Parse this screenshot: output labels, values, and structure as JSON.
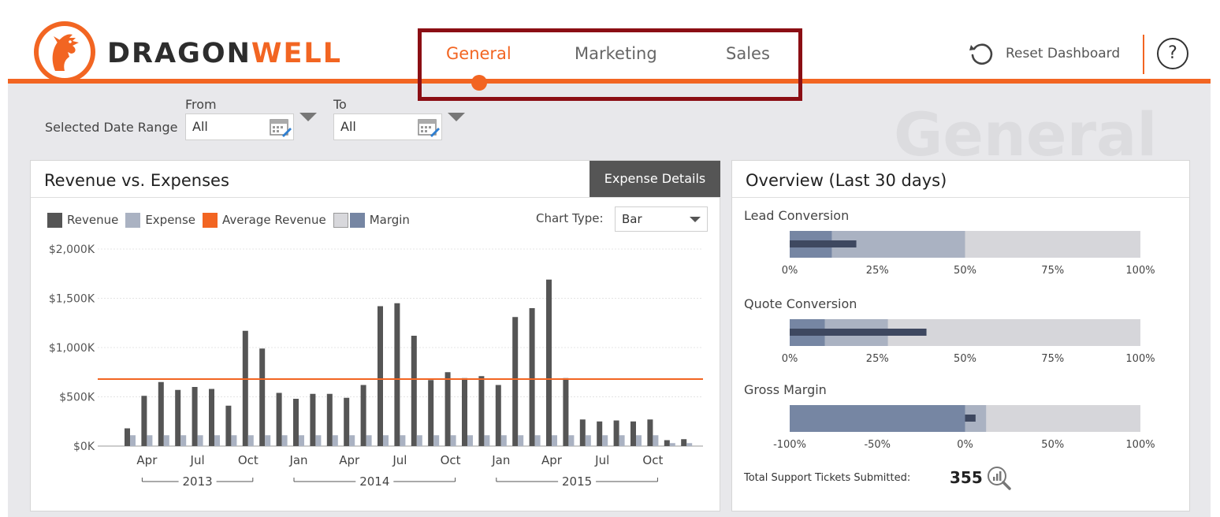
{
  "brand": {
    "logo_left": "DRAGON",
    "logo_right": "WELL",
    "logo_icon": "dragon-logo-icon",
    "accent_color": "#f26522",
    "highlight_color": "#8b0e14"
  },
  "tabs": [
    {
      "label": "General",
      "active": true
    },
    {
      "label": "Marketing",
      "active": false
    },
    {
      "label": "Sales",
      "active": false
    }
  ],
  "header": {
    "reset_label": "Reset Dashboard",
    "reset_icon": "reset-icon",
    "help_label": "?"
  },
  "filters": {
    "date_range_label": "Selected Date Range",
    "from_label": "From",
    "to_label": "To",
    "from_value": "All",
    "to_value": "All",
    "calendar_icon": "calendar-icon"
  },
  "watermark": "General",
  "revenue_panel": {
    "title": "Revenue vs. Expenses",
    "expense_button": "Expense Details",
    "legend": {
      "revenue": "Revenue",
      "expense": "Expense",
      "average": "Average Revenue",
      "margin": "Margin"
    },
    "chart_type_label": "Chart Type:",
    "chart_type_value": "Bar"
  },
  "chart_data": {
    "type": "bar",
    "categories": [
      "Mar 2013",
      "Apr 2013",
      "May 2013",
      "Jun 2013",
      "Jul 2013",
      "Aug 2013",
      "Sep 2013",
      "Oct 2013",
      "Nov 2013",
      "Dec 2013",
      "Jan 2014",
      "Feb 2014",
      "Mar 2014",
      "Apr 2014",
      "May 2014",
      "Jun 2014",
      "Jul 2014",
      "Aug 2014",
      "Sep 2014",
      "Oct 2014",
      "Nov 2014",
      "Dec 2014",
      "Jan 2015",
      "Feb 2015",
      "Mar 2015",
      "Apr 2015",
      "May 2015",
      "Jun 2015",
      "Jul 2015",
      "Aug 2015",
      "Sep 2015",
      "Oct 2015",
      "Nov 2015",
      "Dec 2015"
    ],
    "series": [
      {
        "name": "Revenue",
        "color": "#555555",
        "values": [
          180,
          510,
          650,
          570,
          600,
          580,
          410,
          1170,
          990,
          540,
          480,
          530,
          530,
          490,
          620,
          1420,
          1450,
          1120,
          670,
          750,
          690,
          710,
          620,
          1310,
          1400,
          1690,
          690,
          270,
          250,
          260,
          250,
          270,
          60,
          70
        ]
      },
      {
        "name": "Expense",
        "color": "#aab2c2",
        "values": [
          110,
          110,
          110,
          110,
          110,
          110,
          110,
          110,
          110,
          110,
          110,
          110,
          110,
          110,
          110,
          110,
          110,
          110,
          110,
          110,
          110,
          110,
          110,
          110,
          110,
          110,
          110,
          110,
          110,
          110,
          110,
          110,
          30,
          30
        ]
      }
    ],
    "average_revenue": 680,
    "y_ticks": [
      "$0K",
      "$500K",
      "$1,000K",
      "$1,500K",
      "$2,000K"
    ],
    "ylim": [
      0,
      2000
    ],
    "x_tick_labels": [
      {
        "label": "Apr",
        "index": 1
      },
      {
        "label": "Jul",
        "index": 4
      },
      {
        "label": "Oct",
        "index": 7
      },
      {
        "label": "Jan",
        "index": 10
      },
      {
        "label": "Apr",
        "index": 13
      },
      {
        "label": "Jul",
        "index": 16
      },
      {
        "label": "Oct",
        "index": 19
      },
      {
        "label": "Jan",
        "index": 22
      },
      {
        "label": "Apr",
        "index": 25
      },
      {
        "label": "Jul",
        "index": 28
      },
      {
        "label": "Oct",
        "index": 31
      }
    ],
    "year_groups": [
      {
        "label": "2013",
        "start": 1,
        "end": 7
      },
      {
        "label": "2014",
        "start": 10,
        "end": 19
      },
      {
        "label": "2015",
        "start": 22,
        "end": 31
      }
    ],
    "grid": true,
    "legend_placement": "top-left"
  },
  "overview": {
    "title": "Overview (Last 30 days)",
    "bullets": [
      {
        "label": "Lead Conversion",
        "min": 0,
        "max": 100,
        "ticks": [
          "0%",
          "25%",
          "50%",
          "75%",
          "100%"
        ],
        "range_dark_to": 12,
        "range_mid_to": 50,
        "value": 19
      },
      {
        "label": "Quote Conversion",
        "min": 0,
        "max": 100,
        "ticks": [
          "0%",
          "25%",
          "50%",
          "75%",
          "100%"
        ],
        "range_dark_to": 10,
        "range_mid_to": 28,
        "value": 39
      },
      {
        "label": "Gross Margin",
        "min": -100,
        "max": 100,
        "ticks": [
          "-100%",
          "-50%",
          "0%",
          "50%",
          "100%"
        ],
        "range_dark_to": 0,
        "range_mid_to": 12,
        "value": 6
      }
    ],
    "tickets_label": "Total Support Tickets Submitted:",
    "tickets_value": "355",
    "tickets_icon": "chart-zoom-icon"
  }
}
